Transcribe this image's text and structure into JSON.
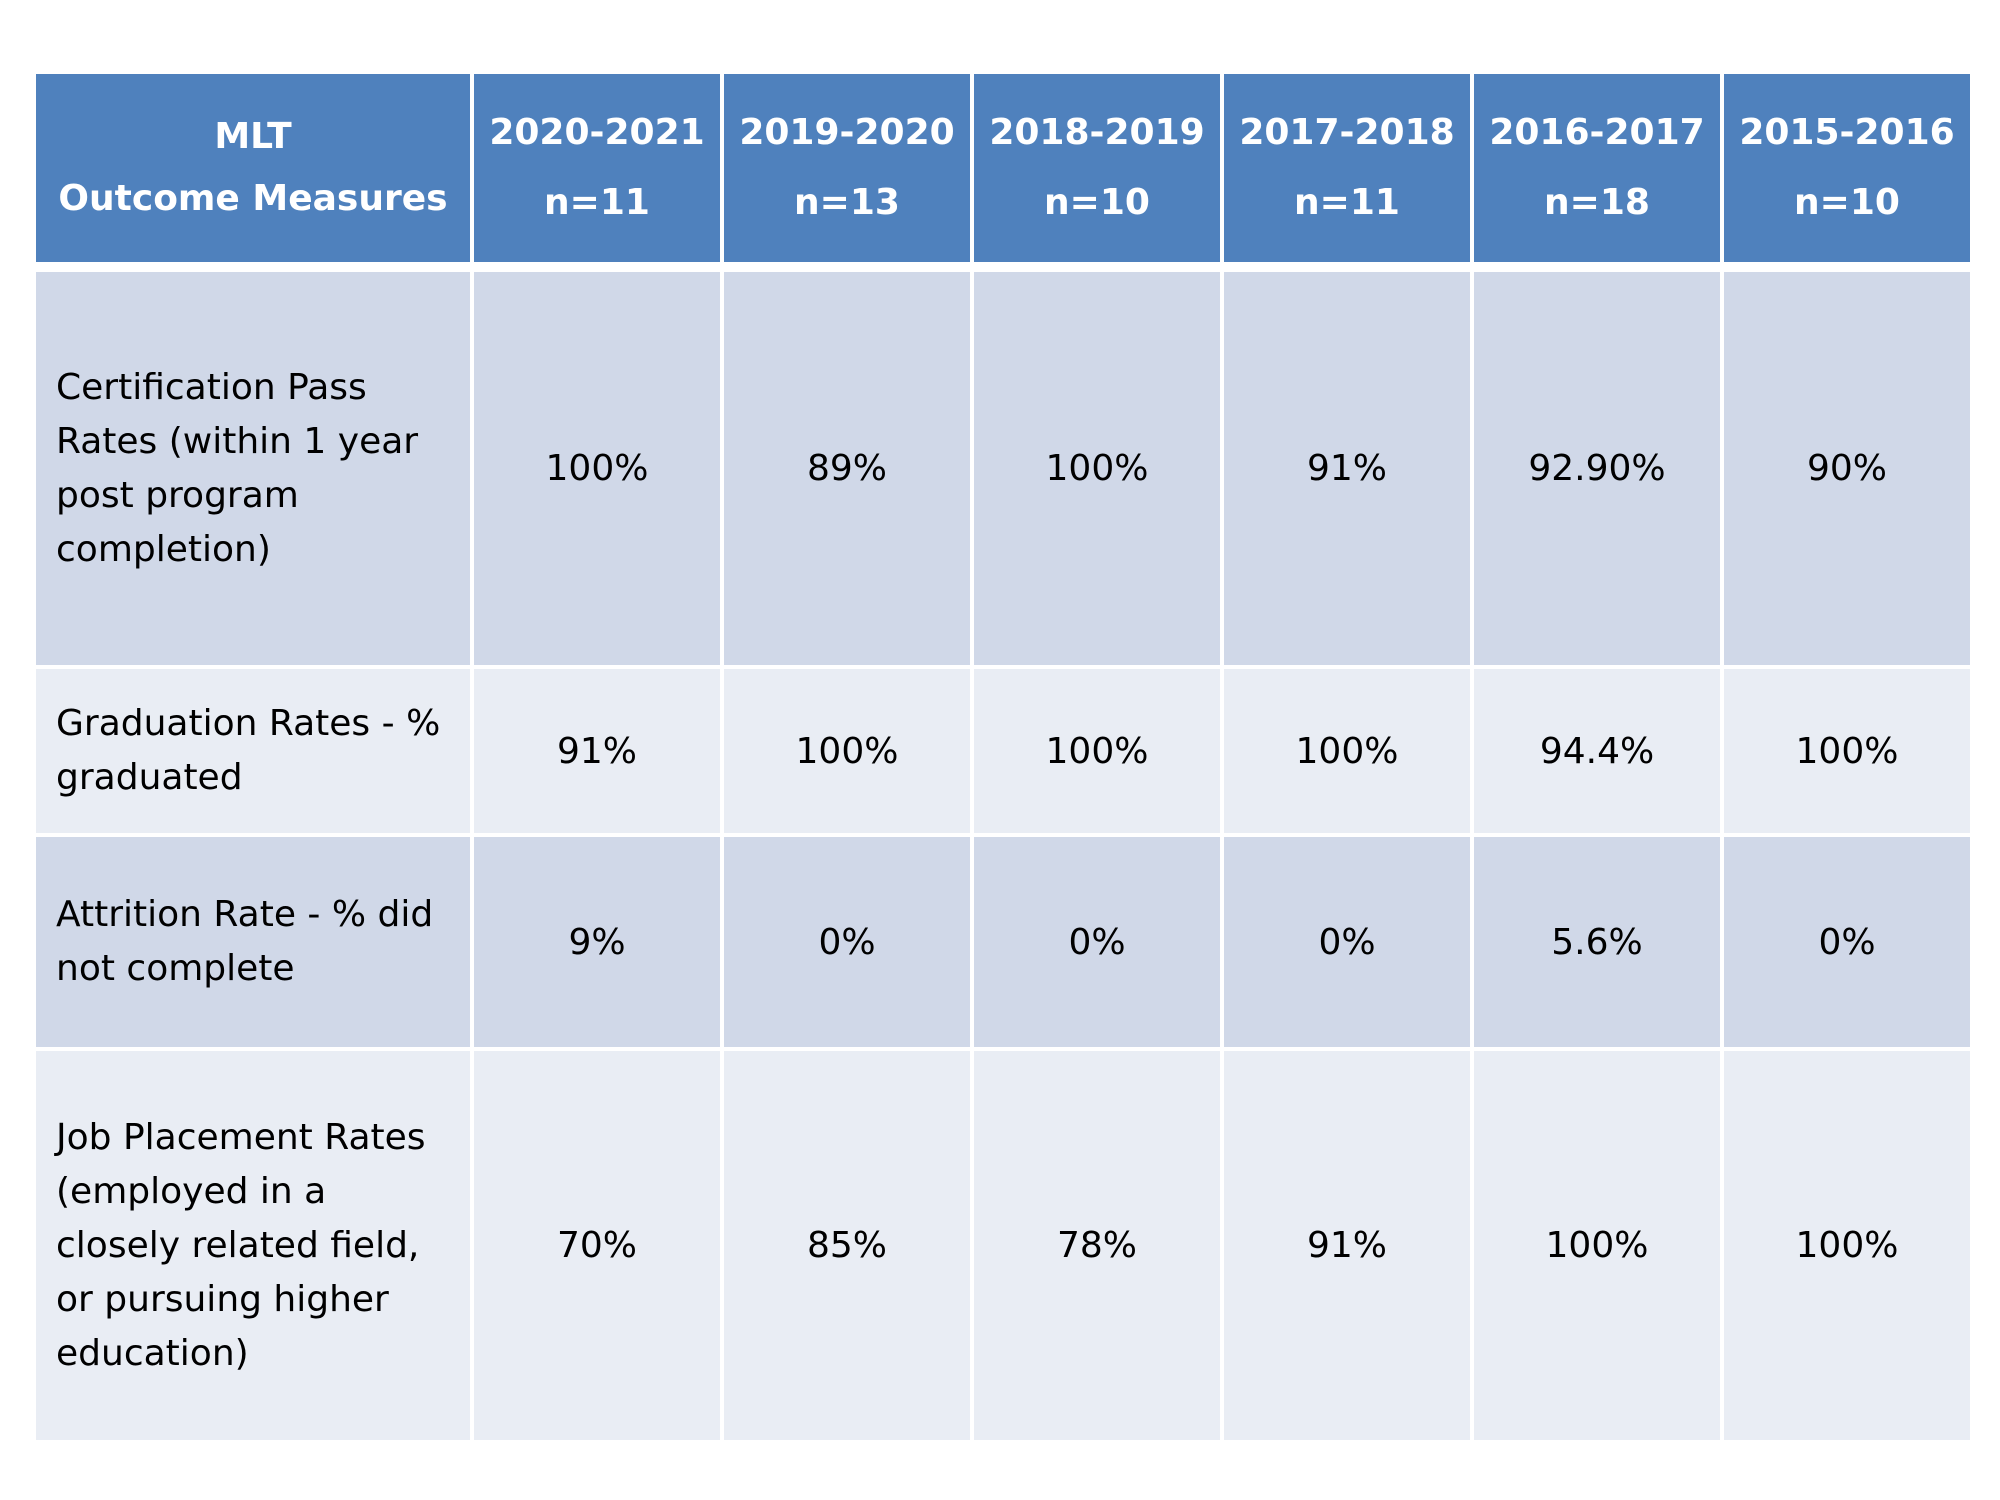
{
  "table": {
    "header": {
      "first_col": [
        "MLT",
        "Outcome Measures"
      ],
      "years": [
        {
          "label": "2020-2021",
          "n": "n=11"
        },
        {
          "label": "2019-2020",
          "n": "n=13"
        },
        {
          "label": "2018-2019",
          "n": "n=10"
        },
        {
          "label": "2017-2018",
          "n": "n=11"
        },
        {
          "label": "2016-2017",
          "n": "n=18"
        },
        {
          "label": "2015-2016",
          "n": "n=10"
        }
      ]
    },
    "rows": [
      {
        "label_lines": [
          "Certification Pass",
          "Rates (within 1 year",
          "post program",
          "completion)"
        ],
        "values": [
          "100%",
          "89%",
          "100%",
          "91%",
          "92.90%",
          "90%"
        ]
      },
      {
        "label_lines": [
          "Graduation Rates - %",
          "graduated"
        ],
        "values": [
          "91%",
          "100%",
          "100%",
          "100%",
          "94.4%",
          "100%"
        ]
      },
      {
        "label_lines": [
          "Attrition Rate - % did",
          "not complete"
        ],
        "values": [
          "9%",
          "0%",
          "0%",
          "0%",
          "5.6%",
          "0%"
        ]
      },
      {
        "label_lines": [
          "Job Placement Rates",
          "(employed in a",
          "closely related field,",
          "or pursuing higher",
          "education)"
        ],
        "values": [
          "70%",
          "85%",
          "78%",
          "91%",
          "100%",
          "100%"
        ]
      }
    ],
    "colors": {
      "header_bg": "#4f81bd",
      "row_dark": "#d0d8e8",
      "row_light": "#e9edf4"
    }
  }
}
